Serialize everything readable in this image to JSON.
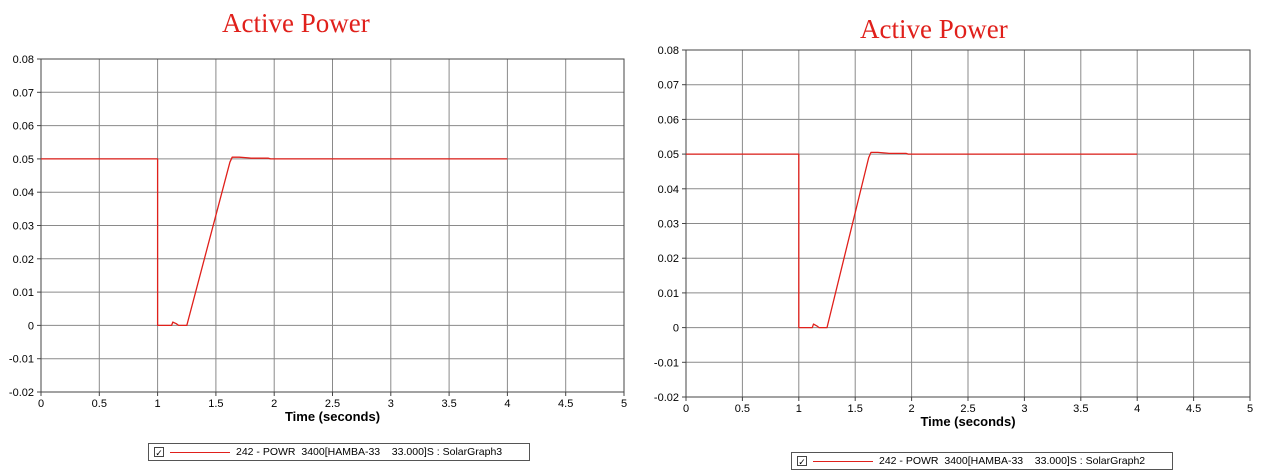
{
  "chart_data": [
    {
      "type": "line",
      "title": "Active Power",
      "xlabel": "Time (seconds)",
      "ylabel": "",
      "xlim": [
        0,
        5
      ],
      "ylim": [
        -0.02,
        0.08
      ],
      "x_ticks": [
        "0",
        "0.5",
        "1",
        "1.5",
        "2",
        "2.5",
        "3",
        "3.5",
        "4",
        "4.5",
        "5"
      ],
      "y_ticks": [
        "0.08",
        "0.07",
        "0.06",
        "0.05",
        "0.04",
        "0.03",
        "0.02",
        "0.01",
        "0",
        "-0.01",
        "-0.02"
      ],
      "grid": true,
      "legend_position": "bottom-center",
      "series_color": "#e0201b",
      "series": [
        {
          "name": "242 - POWR  3400[HAMBA-33    33.000]S : SolarGraph3",
          "x": [
            0,
            1.0,
            1.0,
            1.12,
            1.13,
            1.16,
            1.18,
            1.22,
            1.25,
            1.62,
            1.64,
            1.66,
            1.7,
            1.78,
            1.8,
            1.95,
            1.97,
            4.0
          ],
          "y": [
            0.05,
            0.05,
            0.0,
            0.0,
            0.001,
            0.0005,
            0.0,
            0.0,
            0.0,
            0.049,
            0.0505,
            0.0505,
            0.0505,
            0.0503,
            0.0502,
            0.0502,
            0.05,
            0.05
          ]
        }
      ],
      "legend": {
        "checkbox": "✓",
        "label": "242 - POWR  3400[HAMBA-33    33.000]S : SolarGraph3"
      }
    },
    {
      "type": "line",
      "title": "Active Power",
      "xlabel": "Time (seconds)",
      "ylabel": "",
      "xlim": [
        0,
        5
      ],
      "ylim": [
        -0.02,
        0.08
      ],
      "x_ticks": [
        "0",
        "0.5",
        "1",
        "1.5",
        "2",
        "2.5",
        "3",
        "3.5",
        "4",
        "4.5",
        "5"
      ],
      "y_ticks": [
        "0.08",
        "0.07",
        "0.06",
        "0.05",
        "0.04",
        "0.03",
        "0.02",
        "0.01",
        "0",
        "-0.01",
        "-0.02"
      ],
      "grid": true,
      "legend_position": "bottom-center",
      "series_color": "#e0201b",
      "series": [
        {
          "name": "242 - POWR  3400[HAMBA-33    33.000]S : SolarGraph2",
          "x": [
            0,
            1.0,
            1.0,
            1.12,
            1.13,
            1.16,
            1.18,
            1.22,
            1.25,
            1.62,
            1.64,
            1.66,
            1.7,
            1.78,
            1.8,
            1.95,
            1.97,
            4.0
          ],
          "y": [
            0.05,
            0.05,
            0.0,
            0.0,
            0.001,
            0.0005,
            0.0,
            0.0,
            0.0,
            0.049,
            0.0505,
            0.0505,
            0.0505,
            0.0503,
            0.0502,
            0.0502,
            0.05,
            0.05
          ]
        }
      ],
      "legend": {
        "checkbox": "✓",
        "label": "242 - POWR  3400[HAMBA-33    33.000]S : SolarGraph2"
      }
    }
  ]
}
